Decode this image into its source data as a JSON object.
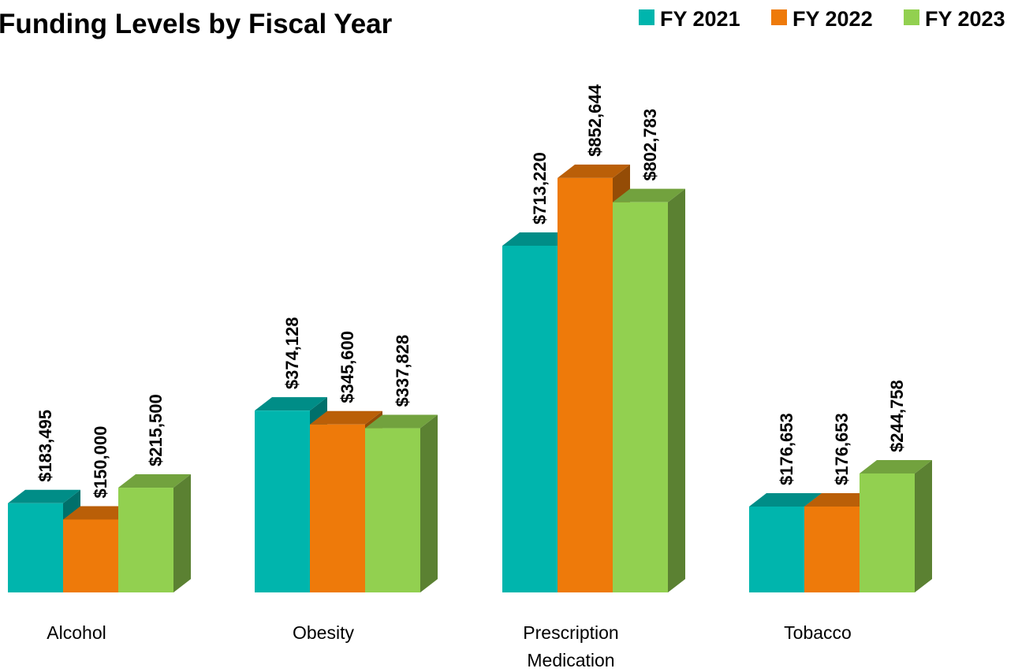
{
  "chart_data": {
    "type": "bar",
    "title": "Funding Levels by Fiscal Year",
    "xlabel": "",
    "ylabel": "",
    "ylim": [
      0,
      1000000
    ],
    "grid": false,
    "legend_position": "top-right",
    "categories": [
      [
        "Alcohol"
      ],
      [
        "Obesity"
      ],
      [
        "Prescription",
        "Medication"
      ],
      [
        "Tobacco"
      ]
    ],
    "series": [
      {
        "name": "FY 2021",
        "color": "#00B5AD",
        "values": [
          183495,
          374128,
          713220,
          176653
        ],
        "labels": [
          "$183,495",
          "$374,128",
          "$713,220",
          "$176,653"
        ]
      },
      {
        "name": "FY 2022",
        "color": "#EE7A0A",
        "values": [
          150000,
          345600,
          852644,
          176653
        ],
        "labels": [
          "$150,000",
          "$345,600",
          "$852,644",
          "$176,653"
        ]
      },
      {
        "name": "FY 2023",
        "color": "#92D050",
        "values": [
          215500,
          337828,
          802783,
          244758
        ],
        "labels": [
          "$215,500",
          "$337,828",
          "$802,783",
          "$244,758"
        ]
      }
    ]
  }
}
